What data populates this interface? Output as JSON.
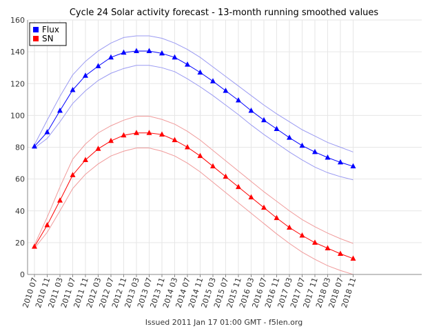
{
  "chart_data": {
    "type": "line",
    "title": "Cycle 24 Solar activity forecast - 13-month running smoothed values",
    "footer": "Issued 2011 Jan 17 01:00 GMT - f5len.org",
    "xlabel": "",
    "ylabel": "",
    "ylim": [
      0,
      160
    ],
    "yticks": [
      0,
      20,
      40,
      60,
      80,
      100,
      120,
      140,
      160
    ],
    "grid": true,
    "legend_position": "top-left",
    "x_tick_labels": [
      "2010 07",
      "2010 11",
      "2011 03",
      "2011 07",
      "2011 11",
      "2012 03",
      "2012 07",
      "2012 11",
      "2013 03",
      "2013 07",
      "2013 11",
      "2014 03",
      "2014 07",
      "2014 11",
      "2015 03",
      "2015 07",
      "2015 11",
      "2016 03",
      "2016 07",
      "2016 11",
      "2017 03",
      "2017 07",
      "2017 11",
      "2018 03",
      "2018 07",
      "2018 11"
    ],
    "series": [
      {
        "name": "Flux",
        "color": "#0000ff",
        "band_color": "#9a9af2",
        "values": [
          80.5,
          89.5,
          103,
          116,
          125,
          131,
          136.5,
          139.5,
          140.5,
          140.5,
          139,
          136.5,
          132,
          127,
          121.5,
          115.5,
          109.5,
          103,
          97,
          91.5,
          86,
          81,
          77,
          73.5,
          70.5,
          68
        ],
        "upper": [
          81.5,
          97,
          112,
          125.5,
          134,
          140.5,
          145.5,
          149,
          150,
          150,
          148.5,
          145.5,
          141.5,
          136.5,
          130.5,
          124.5,
          118.5,
          112.5,
          106.5,
          101,
          96,
          91,
          87,
          83,
          80,
          77
        ],
        "lower": [
          79.5,
          85.5,
          96,
          107.5,
          115.5,
          122,
          126.5,
          129.5,
          131.5,
          131.5,
          130,
          127.5,
          123,
          118,
          112.5,
          106.5,
          100.5,
          94,
          88,
          82.5,
          77,
          72,
          67.5,
          64,
          61.5,
          59.5
        ]
      },
      {
        "name": "SN",
        "color": "#ff0000",
        "band_color": "#f09a9a",
        "values": [
          17.5,
          31,
          46.5,
          62.5,
          72,
          79,
          84,
          87.5,
          89,
          89,
          88,
          84.5,
          80,
          74.5,
          68,
          61.5,
          55,
          48.5,
          42,
          35.5,
          29.5,
          24.5,
          20,
          16.5,
          13,
          10
        ],
        "upper": [
          18.5,
          36,
          55,
          72.5,
          82,
          89,
          93.5,
          97,
          99.5,
          99.5,
          97.5,
          94.5,
          90,
          84.5,
          78,
          71.5,
          65,
          58.5,
          52,
          46,
          40,
          34.5,
          30,
          26,
          22.5,
          19.5
        ],
        "lower": [
          16.5,
          26.5,
          40,
          54,
          63,
          69.5,
          74.5,
          77.5,
          79.5,
          79.5,
          77.5,
          74.5,
          70,
          64.5,
          58,
          51.5,
          45,
          38.5,
          32,
          25.5,
          19.5,
          14,
          9.5,
          5.5,
          2.5,
          0
        ]
      }
    ]
  },
  "colors": {
    "grid": "#e6e6e6",
    "axis": "#888888",
    "legend_border": "#000000"
  }
}
